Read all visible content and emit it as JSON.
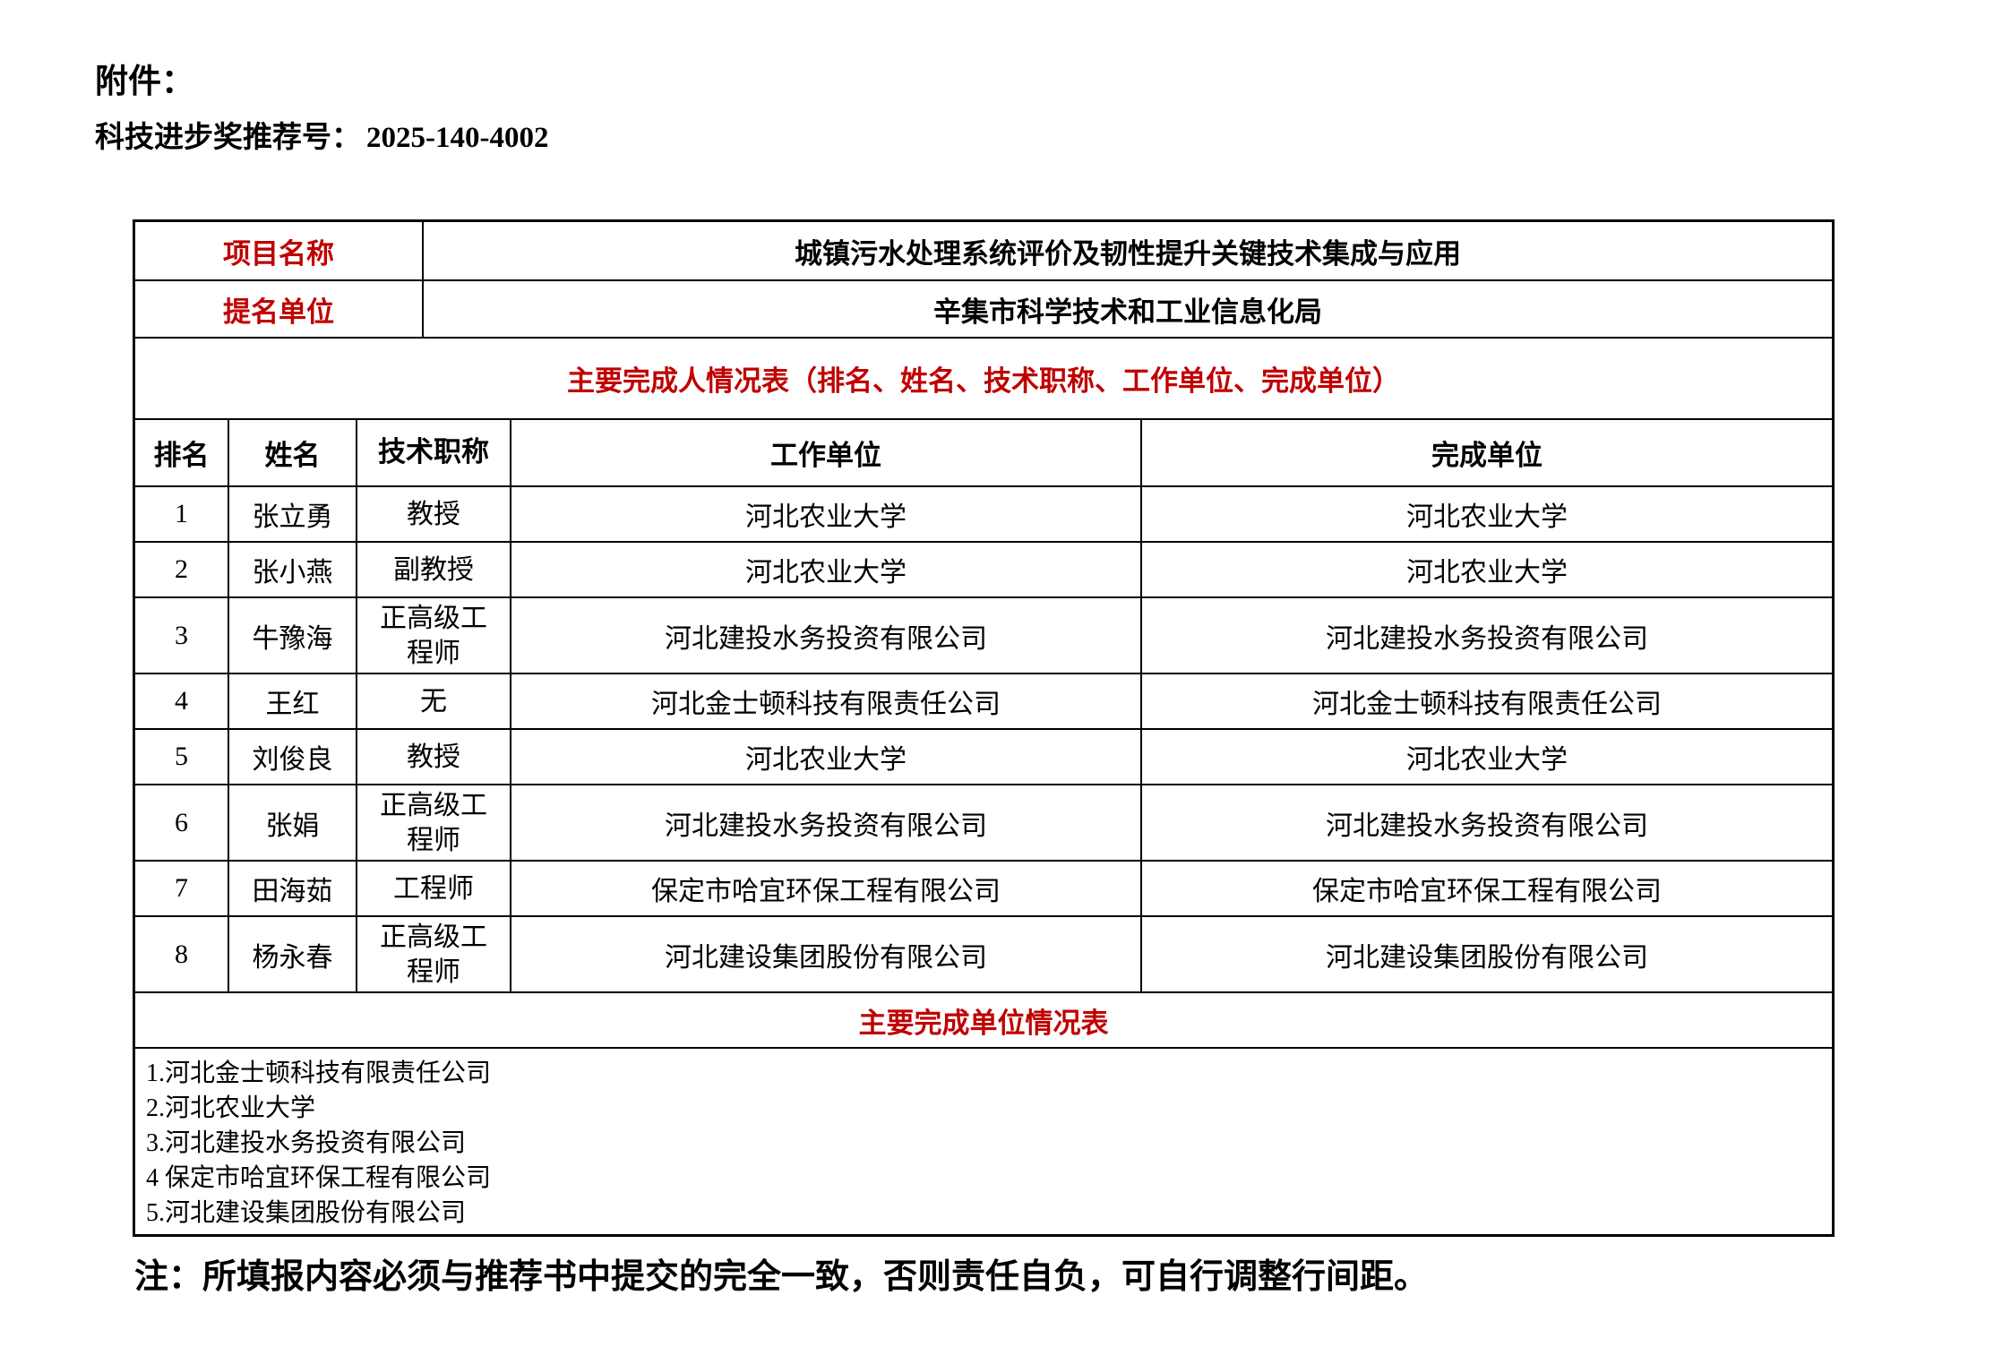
{
  "page": {
    "attachment_label": "附件：",
    "recommendation_label": "科技进步奖推荐号：",
    "recommendation_number": "2025-140-4002",
    "footnote": "注：所填报内容必须与推荐书中提交的完全一致，否则责任自负，可自行调整行间距。"
  },
  "colors": {
    "accent_red": "#C00000",
    "border": "#000000",
    "text": "#000000",
    "background": "#FFFFFF"
  },
  "info_rows": [
    {
      "label": "项目名称",
      "value": "城镇污水处理系统评价及韧性提升关键技术集成与应用"
    },
    {
      "label": "提名单位",
      "value": "辛集市科学技术和工业信息化局"
    }
  ],
  "completers_table": {
    "section_title": "主要完成人情况表（排名、姓名、技术职称、工作单位、完成单位）",
    "columns": [
      "排名",
      "姓名",
      "技术职称",
      "工作单位",
      "完成单位"
    ],
    "rows": [
      {
        "rank": "1",
        "name": "张立勇",
        "title": "教授",
        "work_unit": "河北农业大学",
        "completion_unit": "河北农业大学"
      },
      {
        "rank": "2",
        "name": "张小燕",
        "title": "副教授",
        "work_unit": "河北农业大学",
        "completion_unit": "河北农业大学"
      },
      {
        "rank": "3",
        "name": "牛豫海",
        "title": "正高级工程师",
        "work_unit": "河北建投水务投资有限公司",
        "completion_unit": "河北建投水务投资有限公司"
      },
      {
        "rank": "4",
        "name": "王红",
        "title": "无",
        "work_unit": "河北金士顿科技有限责任公司",
        "completion_unit": "河北金士顿科技有限责任公司"
      },
      {
        "rank": "5",
        "name": "刘俊良",
        "title": "教授",
        "work_unit": "河北农业大学",
        "completion_unit": "河北农业大学"
      },
      {
        "rank": "6",
        "name": "张娟",
        "title": "正高级工程师",
        "work_unit": "河北建投水务投资有限公司",
        "completion_unit": "河北建投水务投资有限公司"
      },
      {
        "rank": "7",
        "name": "田海茹",
        "title": "工程师",
        "work_unit": "保定市哈宜环保工程有限公司",
        "completion_unit": "保定市哈宜环保工程有限公司"
      },
      {
        "rank": "8",
        "name": "杨永春",
        "title": "正高级工程师",
        "work_unit": "河北建设集团股份有限公司",
        "completion_unit": "河北建设集团股份有限公司"
      }
    ]
  },
  "units_table": {
    "section_title": "主要完成单位情况表",
    "items": [
      "1.河北金士顿科技有限责任公司",
      "2.河北农业大学",
      "3.河北建投水务投资有限公司",
      "4 保定市哈宜环保工程有限公司",
      "5.河北建设集团股份有限公司"
    ]
  }
}
